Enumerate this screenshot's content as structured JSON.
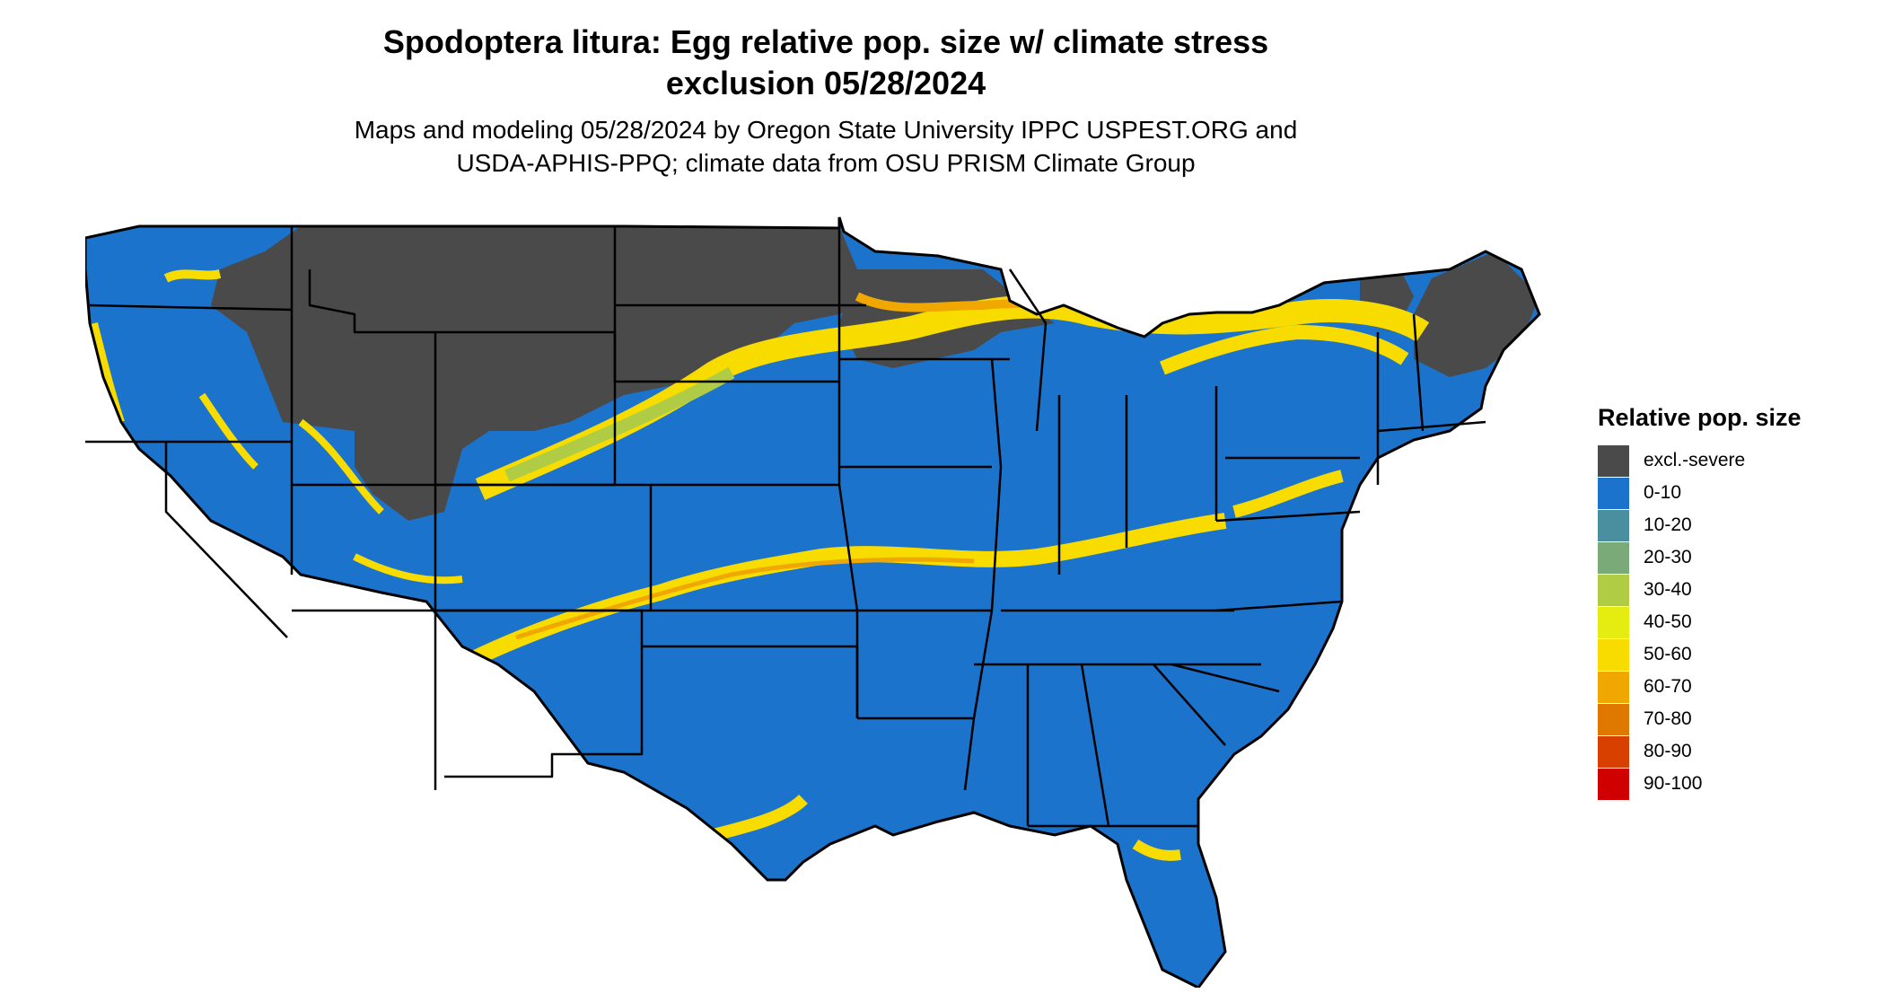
{
  "title": {
    "line1": "Spodoptera litura: Egg relative pop. size w/ climate stress",
    "line2": "exclusion 05/28/2024"
  },
  "subtitle": {
    "line1": "Maps and modeling 05/28/2024 by Oregon State University IPPC USPEST.ORG and",
    "line2": "USDA-APHIS-PPQ; climate data from OSU PRISM Climate Group"
  },
  "legend": {
    "title": "Relative pop. size",
    "items": [
      {
        "label": "excl.-severe",
        "color": "#4a4a4a"
      },
      {
        "label": "0-10",
        "color": "#1c73cc"
      },
      {
        "label": "10-20",
        "color": "#4a8fa0"
      },
      {
        "label": "20-30",
        "color": "#7aaa78"
      },
      {
        "label": "30-40",
        "color": "#b0cc44"
      },
      {
        "label": "40-50",
        "color": "#e4ec10"
      },
      {
        "label": "50-60",
        "color": "#f8dc00"
      },
      {
        "label": "60-70",
        "color": "#f0a800"
      },
      {
        "label": "70-80",
        "color": "#e07800"
      },
      {
        "label": "80-90",
        "color": "#d84000"
      },
      {
        "label": "90-100",
        "color": "#d00000"
      }
    ]
  },
  "colors": {
    "excluded": "#4a4a4a",
    "low": "#1c73cc",
    "mid_green": "#b0cc44",
    "yellow": "#f8dc00",
    "orange": "#f0a800",
    "border": "#000000"
  }
}
